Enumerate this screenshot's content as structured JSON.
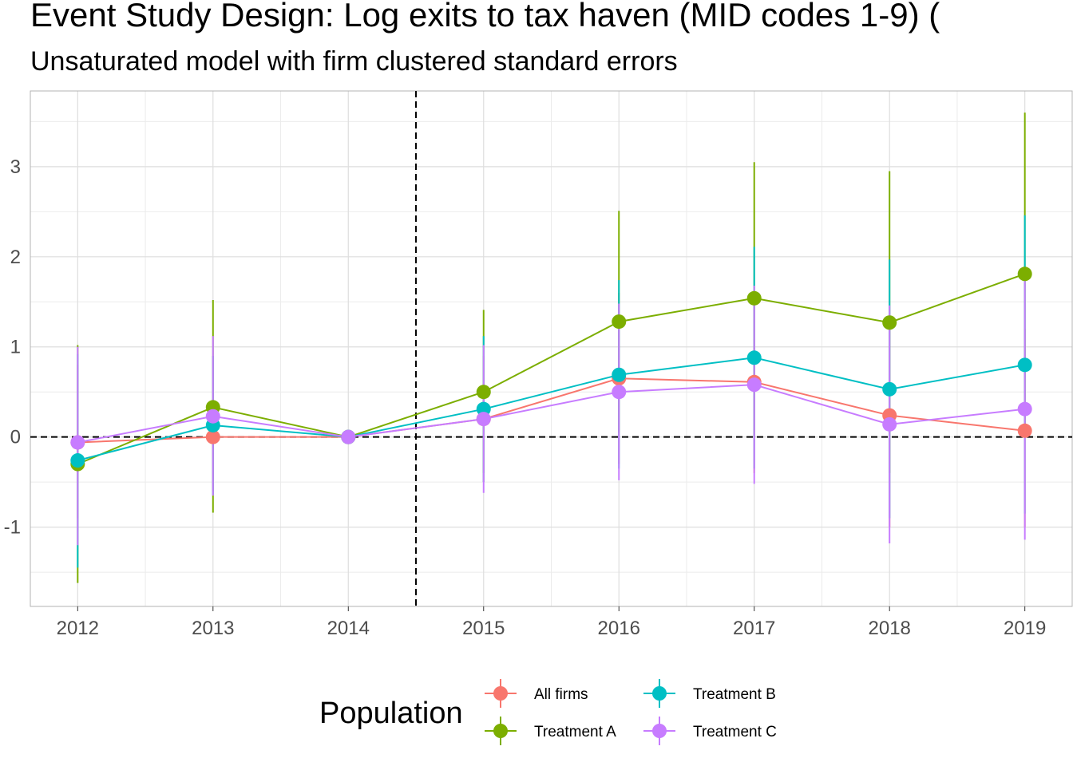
{
  "chart_data": {
    "type": "line",
    "title": "Event Study Design: Log exits to tax haven (MID codes 1-9)  (",
    "subtitle": "Unsaturated model with firm clustered standard errors",
    "xlabel": "",
    "ylabel": "",
    "x": [
      2012,
      2013,
      2014,
      2015,
      2016,
      2017,
      2018,
      2019
    ],
    "xlim": [
      2011.65,
      2019.35
    ],
    "ylim": [
      -1.88,
      3.84
    ],
    "y_ticks": [
      -1,
      0,
      1,
      2,
      3
    ],
    "y_tick_labels": [
      "-1",
      "0",
      "1",
      "2",
      "3"
    ],
    "x_tick_labels": [
      "2012",
      "2013",
      "2014",
      "2015",
      "2016",
      "2017",
      "2018",
      "2019"
    ],
    "hline": 0,
    "vline": 2014.5,
    "grid": true,
    "legend": {
      "title": "Population",
      "position": "bottom"
    },
    "series": [
      {
        "name": "All firms",
        "color": "#F8766D",
        "values": [
          -0.06,
          0.0,
          0.0,
          0.2,
          0.65,
          0.61,
          0.24,
          0.07
        ],
        "lower": [
          -0.9,
          -0.6,
          0.0,
          -0.5,
          -0.3,
          -0.4,
          -1.0,
          -1.0
        ],
        "upper": [
          0.8,
          0.9,
          0.0,
          0.9,
          1.6,
          1.6,
          1.3,
          1.2
        ]
      },
      {
        "name": "Treatment A",
        "color": "#7CAE00",
        "values": [
          -0.3,
          0.33,
          0.0,
          0.5,
          1.28,
          1.54,
          1.27,
          1.81
        ],
        "lower": [
          -1.62,
          -0.84,
          0.0,
          -0.4,
          0.05,
          0.0,
          -0.4,
          0.1
        ],
        "upper": [
          1.02,
          1.52,
          0.0,
          1.41,
          2.51,
          3.05,
          2.95,
          3.6
        ]
      },
      {
        "name": "Treatment B",
        "color": "#00BFC4",
        "values": [
          -0.26,
          0.13,
          0.0,
          0.31,
          0.69,
          0.88,
          0.53,
          0.8
        ],
        "lower": [
          -1.45,
          -0.64,
          0.0,
          -0.5,
          -0.35,
          -0.35,
          -0.9,
          -0.85
        ],
        "upper": [
          0.92,
          0.9,
          0.0,
          1.12,
          1.74,
          2.11,
          1.97,
          2.46
        ]
      },
      {
        "name": "Treatment C",
        "color": "#C77CFF",
        "values": [
          -0.06,
          0.23,
          0.0,
          0.2,
          0.5,
          0.58,
          0.14,
          0.31
        ],
        "lower": [
          -1.2,
          -0.65,
          0.0,
          -0.62,
          -0.48,
          -0.52,
          -1.18,
          -1.14
        ],
        "upper": [
          1.0,
          1.12,
          0.0,
          1.02,
          1.48,
          1.68,
          1.46,
          1.77
        ]
      }
    ]
  }
}
